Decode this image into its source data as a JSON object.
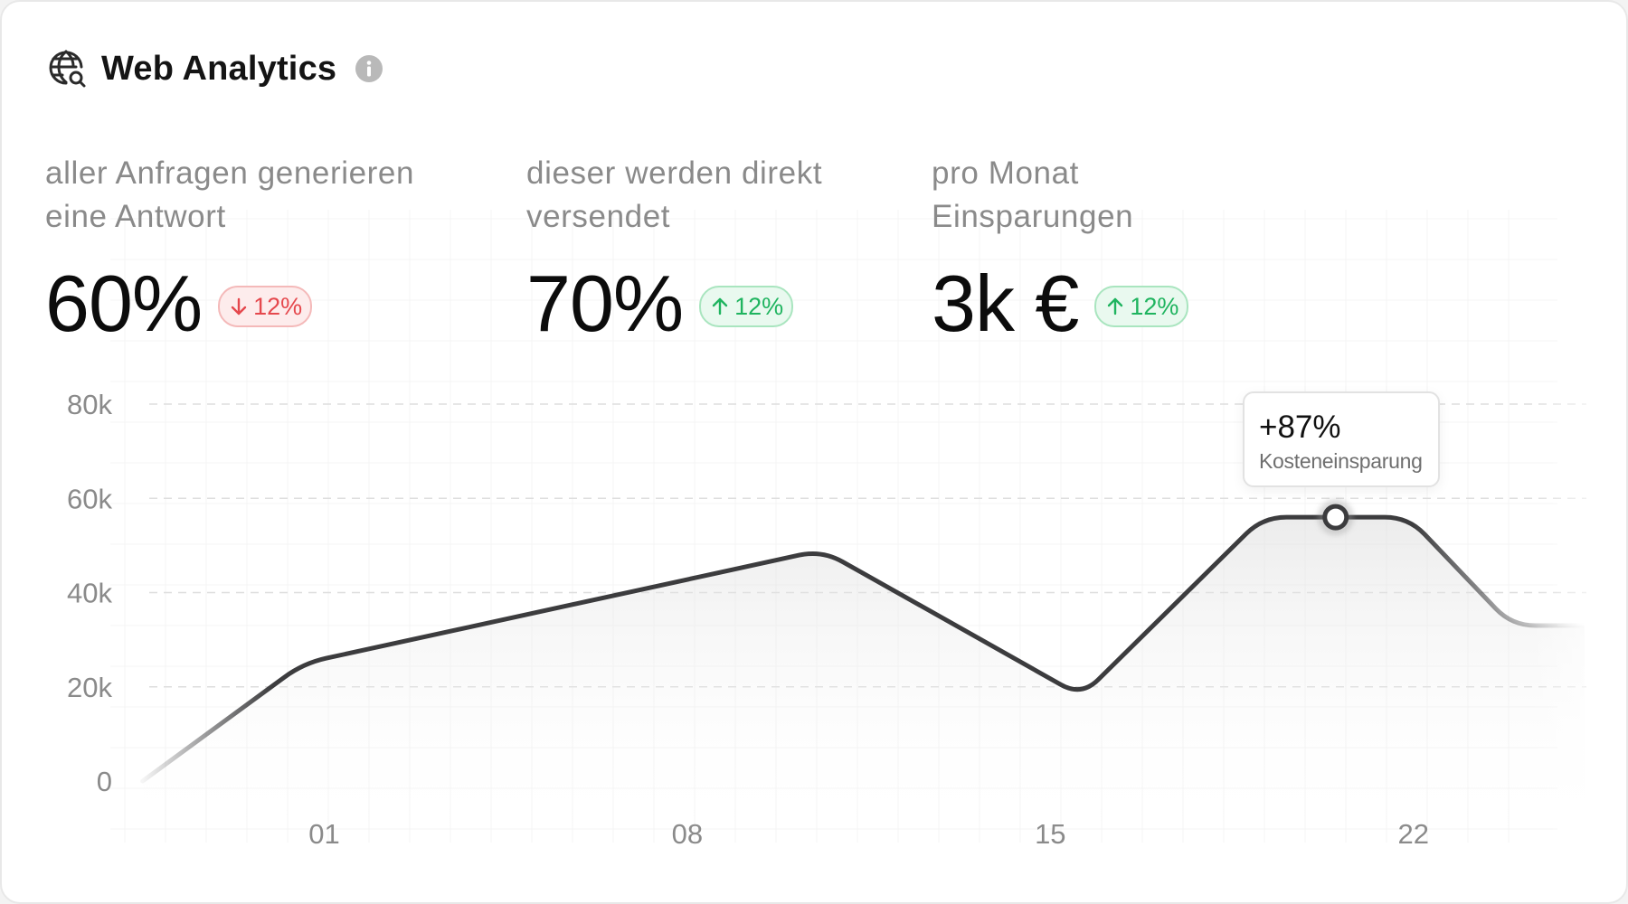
{
  "header": {
    "title": "Web Analytics"
  },
  "stats": [
    {
      "label_line1": "aller Anfragen generieren",
      "label_line2": "eine Antwort",
      "value": "60%",
      "change": "12%",
      "direction": "down"
    },
    {
      "label_line1": "dieser werden direkt",
      "label_line2": "versendet",
      "value": "70%",
      "change": "12%",
      "direction": "up"
    },
    {
      "label_line1": "pro Monat",
      "label_line2": "Einsparungen",
      "value": "3k €",
      "change": "12%",
      "direction": "up"
    }
  ],
  "colors": {
    "line": "#3c3c3e",
    "negative": "#e5484d",
    "positive": "#1fb45f",
    "axis_text": "#8a8a8a",
    "grid": "#dedede"
  },
  "tooltip": {
    "value": "+87%",
    "label": "Kosteneinsparung"
  },
  "chart_data": {
    "type": "area",
    "y_ticks": [
      "0",
      "20k",
      "40k",
      "60k",
      "80k"
    ],
    "ylim": [
      0,
      80000
    ],
    "x_ticks": [
      {
        "label": "01",
        "day": 1
      },
      {
        "label": "08",
        "day": 8
      },
      {
        "label": "15",
        "day": 15
      },
      {
        "label": "22",
        "day": 22
      }
    ],
    "xlim": [
      -2.6,
      25.3
    ],
    "series": [
      {
        "x": [
          -2.5,
          0.6,
          10.6,
          15.6,
          19.1,
          20.5,
          21.9,
          23.9,
          25.3
        ],
        "values": [
          0,
          25000,
          49000,
          18000,
          56000,
          56000,
          56000,
          33000,
          33000
        ]
      }
    ],
    "highlight_index": 5,
    "grid": true,
    "legend": "none"
  }
}
